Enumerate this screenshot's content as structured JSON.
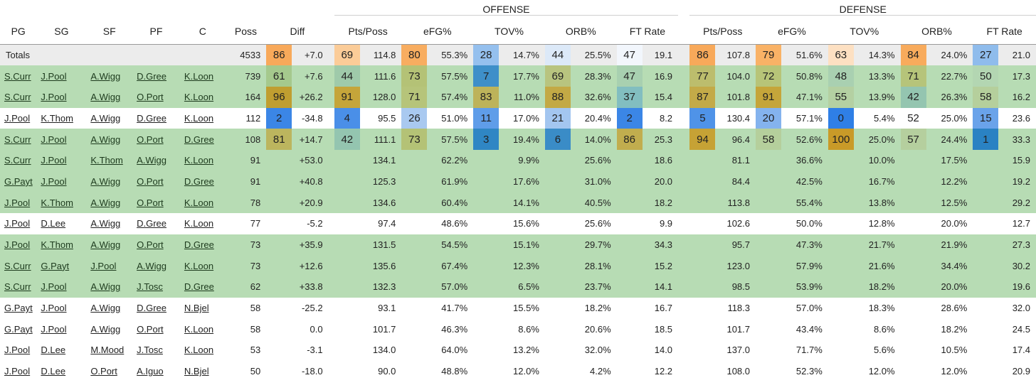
{
  "groups": {
    "offense": "OFFENSE",
    "defense": "DEFENSE"
  },
  "columns": {
    "pg": "PG",
    "sg": "SG",
    "sf": "SF",
    "pf": "PF",
    "c": "C",
    "poss": "Poss",
    "diff": "Diff",
    "off_pts": "Pts/Poss",
    "off_efg": "eFG%",
    "off_tov": "TOV%",
    "off_orb": "ORB%",
    "off_ft": "FT Rate",
    "def_pts": "Pts/Poss",
    "def_efg": "eFG%",
    "def_tov": "TOV%",
    "def_orb": "ORB%",
    "def_ft": "FT Rate"
  },
  "totals": {
    "label": "Totals",
    "poss": "4533",
    "diff": {
      "p": "86",
      "c": "#f8a95a",
      "v": "+7.0"
    },
    "off": [
      {
        "p": "69",
        "c": "#fbcc98",
        "v": "114.8"
      },
      {
        "p": "80",
        "c": "#f8ad60",
        "v": "55.3%"
      },
      {
        "p": "28",
        "c": "#95c0ee",
        "v": "14.7%"
      },
      {
        "p": "44",
        "c": "#dce9f8",
        "v": "25.5%"
      },
      {
        "p": "47",
        "c": "#f2f6fc",
        "v": "19.1"
      }
    ],
    "def": [
      {
        "p": "86",
        "c": "#f8a95a",
        "v": "107.8"
      },
      {
        "p": "79",
        "c": "#f9b266",
        "v": "51.6%"
      },
      {
        "p": "63",
        "c": "#fde0c2",
        "v": "14.3%"
      },
      {
        "p": "84",
        "c": "#f8ab5c",
        "v": "24.0%"
      },
      {
        "p": "27",
        "c": "#8fbcec",
        "v": "21.0"
      }
    ]
  },
  "rows": [
    {
      "bg": "g",
      "pg": "S.Curr",
      "sg": "J.Pool",
      "sf": "A.Wigg",
      "pf": "D.Gree",
      "c": "K.Loon",
      "poss": "739",
      "diff": {
        "p": "61",
        "c": "#a5c98d",
        "v": "+7.6"
      },
      "off": [
        {
          "p": "44",
          "c": "#9fcaaa",
          "v": "111.6"
        },
        {
          "p": "73",
          "c": "#b4c276",
          "v": "57.5%"
        },
        {
          "p": "7",
          "c": "#3e8fc9",
          "v": "17.7%"
        },
        {
          "p": "69",
          "c": "#b8c47f",
          "v": "28.3%"
        },
        {
          "p": "47",
          "c": "#a8d0b0",
          "v": "16.9"
        }
      ],
      "def": [
        {
          "p": "77",
          "c": "#bcbd6d",
          "v": "104.0"
        },
        {
          "p": "72",
          "c": "#b7c478",
          "v": "50.8%"
        },
        {
          "p": "48",
          "c": "#a9d0b1",
          "v": "13.3%"
        },
        {
          "p": "71",
          "c": "#b6c47a",
          "v": "22.7%"
        },
        {
          "p": "50",
          "c": "#b3d6b2",
          "v": "17.3"
        }
      ]
    },
    {
      "bg": "g",
      "pg": "S.Curr",
      "sg": "J.Pool",
      "sf": "A.Wigg",
      "pf": "O.Port",
      "c": "K.Loon",
      "poss": "164",
      "diff": {
        "p": "96",
        "c": "#c09e30",
        "v": "+26.2"
      },
      "off": [
        {
          "p": "91",
          "c": "#c5a53a",
          "v": "128.0"
        },
        {
          "p": "71",
          "c": "#b6c47a",
          "v": "57.4%"
        },
        {
          "p": "83",
          "c": "#bdb35a",
          "v": "11.0%"
        },
        {
          "p": "88",
          "c": "#c3a945",
          "v": "32.6%"
        },
        {
          "p": "37",
          "c": "#82bec0",
          "v": "15.4"
        }
      ],
      "def": [
        {
          "p": "87",
          "c": "#c3aa48",
          "v": "101.8"
        },
        {
          "p": "91",
          "c": "#c5a53a",
          "v": "47.1%"
        },
        {
          "p": "55",
          "c": "#b4d0a2",
          "v": "13.9%"
        },
        {
          "p": "42",
          "c": "#94c5b0",
          "v": "26.3%"
        },
        {
          "p": "58",
          "c": "#b5cf9c",
          "v": "16.2"
        }
      ]
    },
    {
      "bg": "w",
      "pg": "J.Pool",
      "sg": "K.Thom",
      "sf": "A.Wigg",
      "pf": "D.Gree",
      "c": "K.Loon",
      "poss": "112",
      "diff": {
        "p": "2",
        "c": "#3b86e6",
        "v": "-34.8"
      },
      "off": [
        {
          "p": "4",
          "c": "#4a8fe8",
          "v": "95.5"
        },
        {
          "p": "26",
          "c": "#a9c9f0",
          "v": "51.0%"
        },
        {
          "p": "11",
          "c": "#5f9de9",
          "v": "17.0%"
        },
        {
          "p": "21",
          "c": "#a3c6f0",
          "v": "20.4%"
        },
        {
          "p": "2",
          "c": "#3b86e6",
          "v": "8.2"
        }
      ],
      "def": [
        {
          "p": "5",
          "c": "#4f93e8",
          "v": "130.4"
        },
        {
          "p": "20",
          "c": "#84b3ee",
          "v": "57.1%"
        },
        {
          "p": "0",
          "c": "#2f7fe6",
          "v": "5.4%"
        },
        {
          "p": "52",
          "c": "#ffffff",
          "v": "25.0%"
        },
        {
          "p": "15",
          "c": "#6aa3ea",
          "v": "23.6"
        }
      ]
    },
    {
      "bg": "g",
      "pg": "S.Curr",
      "sg": "J.Pool",
      "sf": "A.Wigg",
      "pf": "O.Port",
      "c": "D.Gree",
      "poss": "108",
      "diff": {
        "p": "81",
        "c": "#bcb55e",
        "v": "+14.7"
      },
      "off": [
        {
          "p": "42",
          "c": "#94c5b0",
          "v": "111.1"
        },
        {
          "p": "73",
          "c": "#b4c276",
          "v": "57.5%"
        },
        {
          "p": "3",
          "c": "#2f86c4",
          "v": "19.4%"
        },
        {
          "p": "6",
          "c": "#3a8cc7",
          "v": "14.0%"
        },
        {
          "p": "86",
          "c": "#c1ad4e",
          "v": "25.3"
        }
      ],
      "def": [
        {
          "p": "94",
          "c": "#c6a235",
          "v": "96.4"
        },
        {
          "p": "58",
          "c": "#b5cf9c",
          "v": "52.6%"
        },
        {
          "p": "100",
          "c": "#c99a28",
          "v": "25.0%"
        },
        {
          "p": "57",
          "c": "#b5cf9e",
          "v": "24.4%"
        },
        {
          "p": "1",
          "c": "#2a82c3",
          "v": "33.3"
        }
      ]
    },
    {
      "bg": "g",
      "pg": "S.Curr",
      "sg": "J.Pool",
      "sf": "K.Thom",
      "pf": "A.Wigg",
      "c": "K.Loon",
      "poss": "91",
      "diff": {
        "p": "",
        "c": "",
        "v": "+53.0"
      },
      "off": [
        {
          "p": "",
          "c": "",
          "v": "134.1"
        },
        {
          "p": "",
          "c": "",
          "v": "62.2%"
        },
        {
          "p": "",
          "c": "",
          "v": "9.9%"
        },
        {
          "p": "",
          "c": "",
          "v": "25.6%"
        },
        {
          "p": "",
          "c": "",
          "v": "18.6"
        }
      ],
      "def": [
        {
          "p": "",
          "c": "",
          "v": "81.1"
        },
        {
          "p": "",
          "c": "",
          "v": "36.6%"
        },
        {
          "p": "",
          "c": "",
          "v": "10.0%"
        },
        {
          "p": "",
          "c": "",
          "v": "17.5%"
        },
        {
          "p": "",
          "c": "",
          "v": "15.9"
        }
      ]
    },
    {
      "bg": "g",
      "pg": "G.Payt",
      "sg": "J.Pool",
      "sf": "A.Wigg",
      "pf": "O.Port",
      "c": "D.Gree",
      "poss": "91",
      "diff": {
        "p": "",
        "c": "",
        "v": "+40.8"
      },
      "off": [
        {
          "p": "",
          "c": "",
          "v": "125.3"
        },
        {
          "p": "",
          "c": "",
          "v": "61.9%"
        },
        {
          "p": "",
          "c": "",
          "v": "17.6%"
        },
        {
          "p": "",
          "c": "",
          "v": "31.0%"
        },
        {
          "p": "",
          "c": "",
          "v": "20.0"
        }
      ],
      "def": [
        {
          "p": "",
          "c": "",
          "v": "84.4"
        },
        {
          "p": "",
          "c": "",
          "v": "42.5%"
        },
        {
          "p": "",
          "c": "",
          "v": "16.7%"
        },
        {
          "p": "",
          "c": "",
          "v": "12.2%"
        },
        {
          "p": "",
          "c": "",
          "v": "19.2"
        }
      ]
    },
    {
      "bg": "g",
      "pg": "J.Pool",
      "sg": "K.Thom",
      "sf": "A.Wigg",
      "pf": "O.Port",
      "c": "K.Loon",
      "poss": "78",
      "diff": {
        "p": "",
        "c": "",
        "v": "+20.9"
      },
      "off": [
        {
          "p": "",
          "c": "",
          "v": "134.6"
        },
        {
          "p": "",
          "c": "",
          "v": "60.4%"
        },
        {
          "p": "",
          "c": "",
          "v": "14.1%"
        },
        {
          "p": "",
          "c": "",
          "v": "40.5%"
        },
        {
          "p": "",
          "c": "",
          "v": "18.2"
        }
      ],
      "def": [
        {
          "p": "",
          "c": "",
          "v": "113.8"
        },
        {
          "p": "",
          "c": "",
          "v": "55.4%"
        },
        {
          "p": "",
          "c": "",
          "v": "13.8%"
        },
        {
          "p": "",
          "c": "",
          "v": "12.5%"
        },
        {
          "p": "",
          "c": "",
          "v": "29.2"
        }
      ]
    },
    {
      "bg": "w",
      "pg": "J.Pool",
      "sg": "D.Lee",
      "sf": "A.Wigg",
      "pf": "D.Gree",
      "c": "K.Loon",
      "poss": "77",
      "diff": {
        "p": "",
        "c": "",
        "v": "-5.2"
      },
      "off": [
        {
          "p": "",
          "c": "",
          "v": "97.4"
        },
        {
          "p": "",
          "c": "",
          "v": "48.6%"
        },
        {
          "p": "",
          "c": "",
          "v": "15.6%"
        },
        {
          "p": "",
          "c": "",
          "v": "25.6%"
        },
        {
          "p": "",
          "c": "",
          "v": "9.9"
        }
      ],
      "def": [
        {
          "p": "",
          "c": "",
          "v": "102.6"
        },
        {
          "p": "",
          "c": "",
          "v": "50.0%"
        },
        {
          "p": "",
          "c": "",
          "v": "12.8%"
        },
        {
          "p": "",
          "c": "",
          "v": "20.0%"
        },
        {
          "p": "",
          "c": "",
          "v": "12.7"
        }
      ]
    },
    {
      "bg": "g",
      "pg": "J.Pool",
      "sg": "K.Thom",
      "sf": "A.Wigg",
      "pf": "O.Port",
      "c": "D.Gree",
      "poss": "73",
      "diff": {
        "p": "",
        "c": "",
        "v": "+35.9"
      },
      "off": [
        {
          "p": "",
          "c": "",
          "v": "131.5"
        },
        {
          "p": "",
          "c": "",
          "v": "54.5%"
        },
        {
          "p": "",
          "c": "",
          "v": "15.1%"
        },
        {
          "p": "",
          "c": "",
          "v": "29.7%"
        },
        {
          "p": "",
          "c": "",
          "v": "34.3"
        }
      ],
      "def": [
        {
          "p": "",
          "c": "",
          "v": "95.7"
        },
        {
          "p": "",
          "c": "",
          "v": "47.3%"
        },
        {
          "p": "",
          "c": "",
          "v": "21.7%"
        },
        {
          "p": "",
          "c": "",
          "v": "21.9%"
        },
        {
          "p": "",
          "c": "",
          "v": "27.3"
        }
      ]
    },
    {
      "bg": "g",
      "pg": "S.Curr",
      "sg": "G.Payt",
      "sf": "J.Pool",
      "pf": "A.Wigg",
      "c": "K.Loon",
      "poss": "73",
      "diff": {
        "p": "",
        "c": "",
        "v": "+12.6"
      },
      "off": [
        {
          "p": "",
          "c": "",
          "v": "135.6"
        },
        {
          "p": "",
          "c": "",
          "v": "67.4%"
        },
        {
          "p": "",
          "c": "",
          "v": "12.3%"
        },
        {
          "p": "",
          "c": "",
          "v": "28.1%"
        },
        {
          "p": "",
          "c": "",
          "v": "15.2"
        }
      ],
      "def": [
        {
          "p": "",
          "c": "",
          "v": "123.0"
        },
        {
          "p": "",
          "c": "",
          "v": "57.9%"
        },
        {
          "p": "",
          "c": "",
          "v": "21.6%"
        },
        {
          "p": "",
          "c": "",
          "v": "34.4%"
        },
        {
          "p": "",
          "c": "",
          "v": "30.2"
        }
      ]
    },
    {
      "bg": "g",
      "pg": "S.Curr",
      "sg": "J.Pool",
      "sf": "A.Wigg",
      "pf": "J.Tosc",
      "c": "D.Gree",
      "poss": "62",
      "diff": {
        "p": "",
        "c": "",
        "v": "+33.8"
      },
      "off": [
        {
          "p": "",
          "c": "",
          "v": "132.3"
        },
        {
          "p": "",
          "c": "",
          "v": "57.0%"
        },
        {
          "p": "",
          "c": "",
          "v": "6.5%"
        },
        {
          "p": "",
          "c": "",
          "v": "23.7%"
        },
        {
          "p": "",
          "c": "",
          "v": "14.1"
        }
      ],
      "def": [
        {
          "p": "",
          "c": "",
          "v": "98.5"
        },
        {
          "p": "",
          "c": "",
          "v": "53.9%"
        },
        {
          "p": "",
          "c": "",
          "v": "18.2%"
        },
        {
          "p": "",
          "c": "",
          "v": "20.0%"
        },
        {
          "p": "",
          "c": "",
          "v": "19.6"
        }
      ]
    },
    {
      "bg": "w",
      "pg": "G.Payt",
      "sg": "J.Pool",
      "sf": "A.Wigg",
      "pf": "D.Gree",
      "c": "N.Bjel",
      "poss": "58",
      "diff": {
        "p": "",
        "c": "",
        "v": "-25.2"
      },
      "off": [
        {
          "p": "",
          "c": "",
          "v": "93.1"
        },
        {
          "p": "",
          "c": "",
          "v": "41.7%"
        },
        {
          "p": "",
          "c": "",
          "v": "15.5%"
        },
        {
          "p": "",
          "c": "",
          "v": "18.2%"
        },
        {
          "p": "",
          "c": "",
          "v": "16.7"
        }
      ],
      "def": [
        {
          "p": "",
          "c": "",
          "v": "118.3"
        },
        {
          "p": "",
          "c": "",
          "v": "57.0%"
        },
        {
          "p": "",
          "c": "",
          "v": "18.3%"
        },
        {
          "p": "",
          "c": "",
          "v": "28.6%"
        },
        {
          "p": "",
          "c": "",
          "v": "32.0"
        }
      ]
    },
    {
      "bg": "w",
      "pg": "G.Payt",
      "sg": "J.Pool",
      "sf": "A.Wigg",
      "pf": "O.Port",
      "c": "K.Loon",
      "poss": "58",
      "diff": {
        "p": "",
        "c": "",
        "v": "0.0"
      },
      "off": [
        {
          "p": "",
          "c": "",
          "v": "101.7"
        },
        {
          "p": "",
          "c": "",
          "v": "46.3%"
        },
        {
          "p": "",
          "c": "",
          "v": "8.6%"
        },
        {
          "p": "",
          "c": "",
          "v": "20.6%"
        },
        {
          "p": "",
          "c": "",
          "v": "18.5"
        }
      ],
      "def": [
        {
          "p": "",
          "c": "",
          "v": "101.7"
        },
        {
          "p": "",
          "c": "",
          "v": "43.4%"
        },
        {
          "p": "",
          "c": "",
          "v": "8.6%"
        },
        {
          "p": "",
          "c": "",
          "v": "18.2%"
        },
        {
          "p": "",
          "c": "",
          "v": "24.5"
        }
      ]
    },
    {
      "bg": "w",
      "pg": "J.Pool",
      "sg": "D.Lee",
      "sf": "M.Mood",
      "pf": "J.Tosc",
      "c": "K.Loon",
      "poss": "53",
      "diff": {
        "p": "",
        "c": "",
        "v": "-3.1"
      },
      "off": [
        {
          "p": "",
          "c": "",
          "v": "134.0"
        },
        {
          "p": "",
          "c": "",
          "v": "64.0%"
        },
        {
          "p": "",
          "c": "",
          "v": "13.2%"
        },
        {
          "p": "",
          "c": "",
          "v": "32.0%"
        },
        {
          "p": "",
          "c": "",
          "v": "14.0"
        }
      ],
      "def": [
        {
          "p": "",
          "c": "",
          "v": "137.0"
        },
        {
          "p": "",
          "c": "",
          "v": "71.7%"
        },
        {
          "p": "",
          "c": "",
          "v": "5.6%"
        },
        {
          "p": "",
          "c": "",
          "v": "10.5%"
        },
        {
          "p": "",
          "c": "",
          "v": "17.4"
        }
      ]
    },
    {
      "bg": "w",
      "pg": "J.Pool",
      "sg": "D.Lee",
      "sf": "O.Port",
      "pf": "A.Iguo",
      "c": "N.Bjel",
      "poss": "50",
      "diff": {
        "p": "",
        "c": "",
        "v": "-18.0"
      },
      "off": [
        {
          "p": "",
          "c": "",
          "v": "90.0"
        },
        {
          "p": "",
          "c": "",
          "v": "48.8%"
        },
        {
          "p": "",
          "c": "",
          "v": "12.0%"
        },
        {
          "p": "",
          "c": "",
          "v": "4.2%"
        },
        {
          "p": "",
          "c": "",
          "v": "12.2"
        }
      ],
      "def": [
        {
          "p": "",
          "c": "",
          "v": "108.0"
        },
        {
          "p": "",
          "c": "",
          "v": "52.3%"
        },
        {
          "p": "",
          "c": "",
          "v": "12.0%"
        },
        {
          "p": "",
          "c": "",
          "v": "12.0%"
        },
        {
          "p": "",
          "c": "",
          "v": "20.9"
        }
      ]
    }
  ]
}
